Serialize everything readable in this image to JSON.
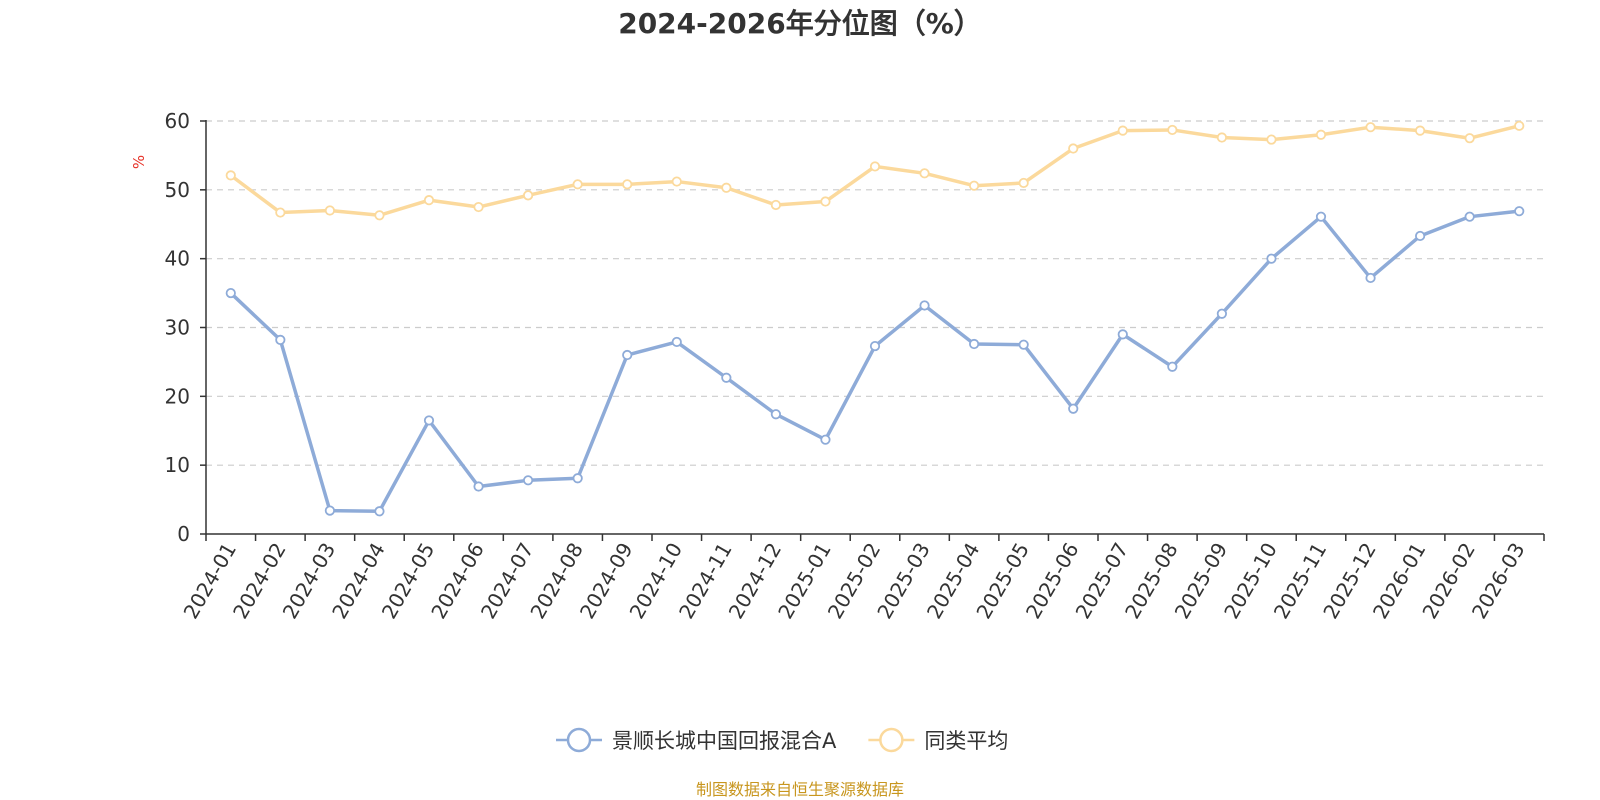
{
  "chart_data": {
    "type": "line",
    "title": "2024-2026年分位图（%）",
    "ylabel": "%",
    "xlabel": "",
    "ylim": [
      0,
      60
    ],
    "yticks": [
      0,
      10,
      20,
      30,
      40,
      50,
      60
    ],
    "grid": true,
    "legend_position": "bottom-center",
    "categories": [
      "2024-01",
      "2024-02",
      "2024-03",
      "2024-04",
      "2024-05",
      "2024-06",
      "2024-07",
      "2024-08",
      "2024-09",
      "2024-10",
      "2024-11",
      "2024-12",
      "2025-01",
      "2025-02",
      "2025-03",
      "2025-04",
      "2025-05",
      "2025-06",
      "2025-07",
      "2025-08",
      "2025-09",
      "2025-10",
      "2025-11",
      "2025-12",
      "2026-01",
      "2026-02",
      "2026-03"
    ],
    "series": [
      {
        "name": "景顺长城中国回报混合A",
        "color": "#8eabd8",
        "values": [
          35.0,
          28.2,
          3.4,
          3.3,
          16.5,
          6.9,
          7.8,
          8.1,
          26.0,
          27.9,
          22.7,
          17.4,
          13.7,
          27.3,
          33.2,
          27.6,
          27.5,
          18.2,
          29.0,
          24.3,
          32.0,
          40.0,
          46.1,
          37.2,
          43.3,
          46.1,
          46.9
        ]
      },
      {
        "name": "同类平均",
        "color": "#fbd99c",
        "values": [
          52.1,
          46.7,
          47.0,
          46.3,
          48.5,
          47.5,
          49.2,
          50.8,
          50.8,
          51.2,
          50.3,
          47.8,
          48.3,
          53.4,
          52.4,
          50.6,
          51.0,
          56.0,
          58.6,
          58.7,
          57.6,
          57.3,
          58.0,
          59.1,
          58.6,
          57.5,
          59.3
        ]
      }
    ]
  },
  "footer": {
    "source": "制图数据来自恒生聚源数据库",
    "source_color": "#c8961e",
    "unit_color": "#e63228"
  }
}
